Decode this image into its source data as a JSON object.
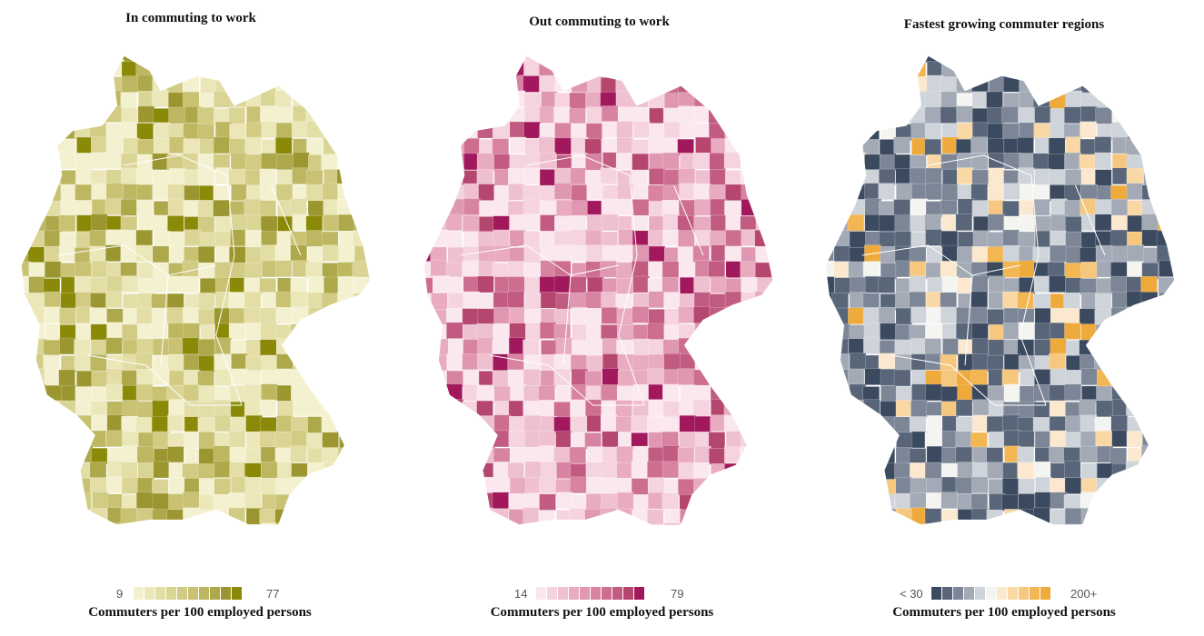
{
  "maps": [
    {
      "title": "In commuting to work",
      "legend_min": "9",
      "legend_max": "77",
      "caption": "Commuters per 100 employed persons",
      "colors": [
        "#f4f1d0",
        "#ece7b9",
        "#e3dda6",
        "#dad595",
        "#d1cb84",
        "#c8c272",
        "#bcb760",
        "#ada84a",
        "#9b9630",
        "#8a8a08"
      ],
      "accent": "#8a8a08"
    },
    {
      "title": "Out commuting to work",
      "legend_min": "14",
      "legend_max": "79",
      "caption": "Commuters per 100 employed persons",
      "colors": [
        "#fbe8ee",
        "#f5d3df",
        "#efc0d0",
        "#e8abc0",
        "#e097b1",
        "#d783a1",
        "#cd6e91",
        "#c25b81",
        "#b54670",
        "#a2185c"
      ],
      "accent": "#a2185c"
    },
    {
      "title": "Fastest growing commuter regions",
      "legend_min": "< 30",
      "legend_max": "200+",
      "caption": "Commuters per 100 employed persons",
      "colors": [
        "#3b4a5f",
        "#59667a",
        "#7c8697",
        "#a3aab6",
        "#cfd3da",
        "#f4f4f1",
        "#fbe8cf",
        "#f9d8a6",
        "#f6c77f",
        "#f2b652",
        "#efaa3c"
      ],
      "accent": "#efaa3c"
    }
  ]
}
